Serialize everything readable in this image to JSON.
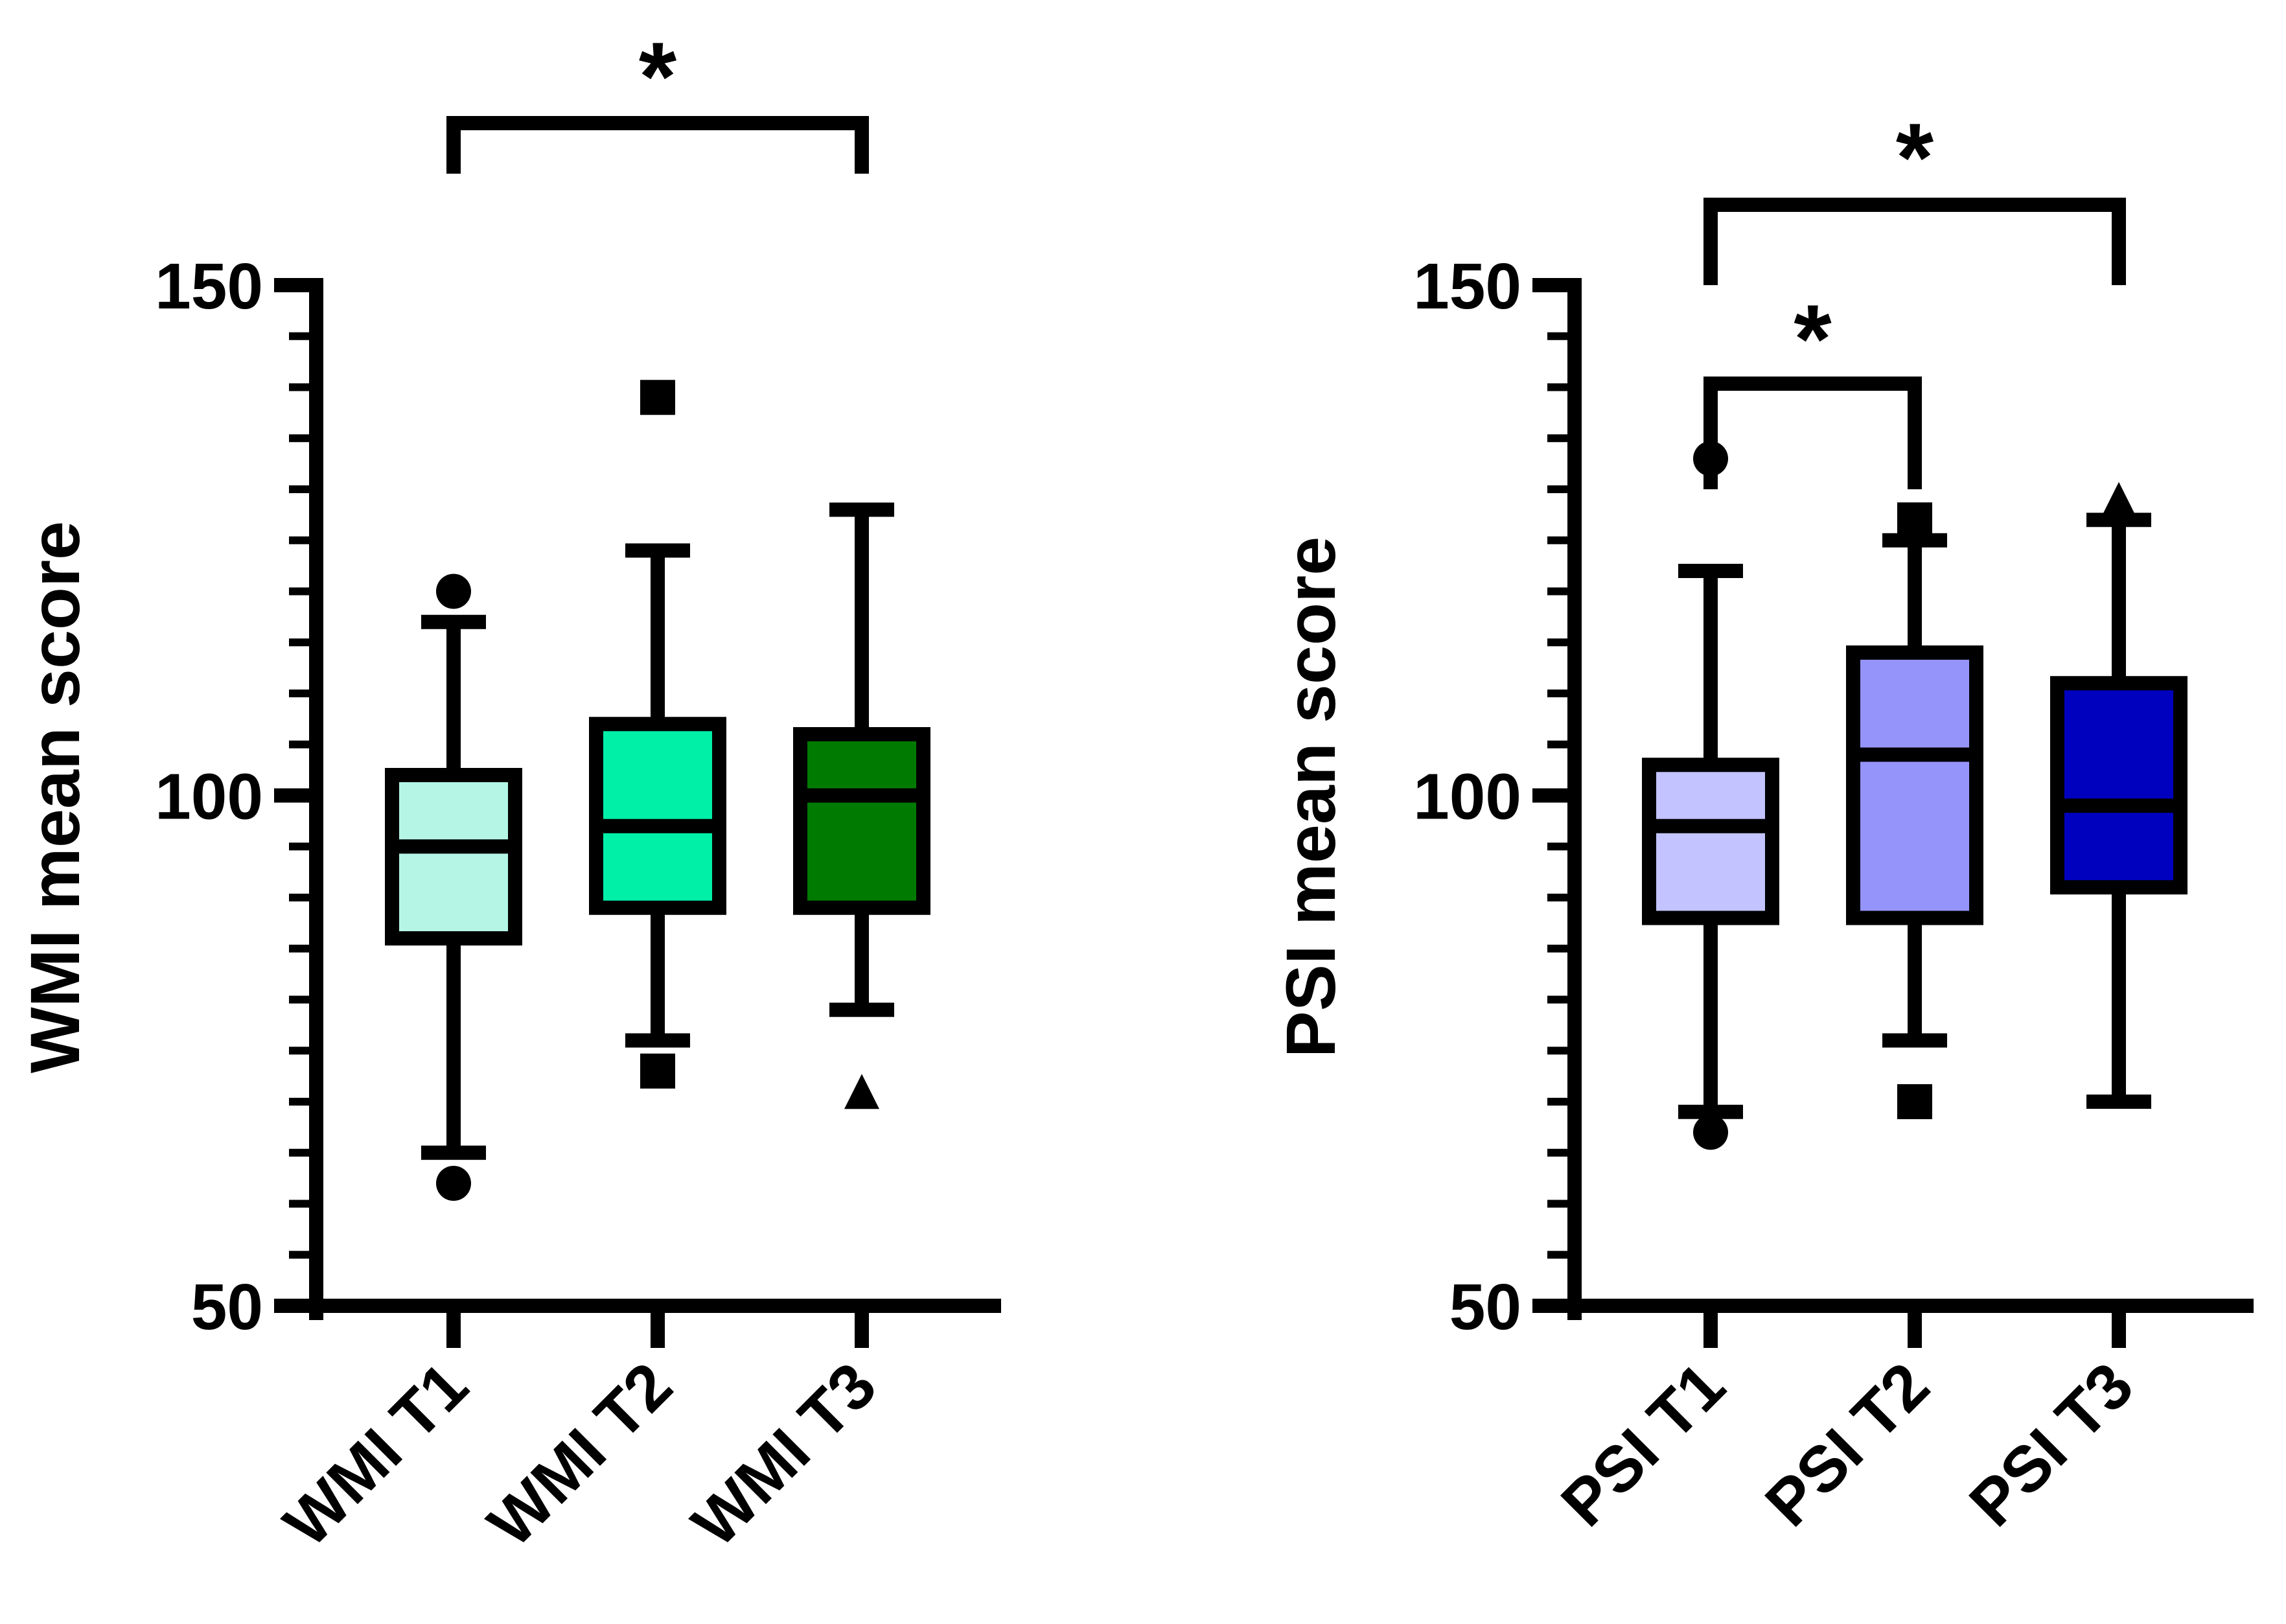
{
  "chart_data": [
    {
      "type": "box",
      "title": "",
      "xlabel": "",
      "ylabel": "WMI mean score",
      "ylim": [
        50,
        150
      ],
      "yticks": [
        50,
        100,
        150
      ],
      "minor_tick_step": 5,
      "categories": [
        "WMI T1",
        "WMI T2",
        "WMI T3"
      ],
      "boxes": [
        {
          "label": "WMI T1",
          "color": "#B5F5E5",
          "whisker_low": 65,
          "q1": 86,
          "median": 95,
          "q3": 102,
          "whisker_high": 117,
          "outliers": [
            62,
            120
          ],
          "marker": "circle"
        },
        {
          "label": "WMI T2",
          "color": "#00F0A8",
          "whisker_low": 76,
          "q1": 89,
          "median": 97,
          "q3": 107,
          "whisker_high": 124,
          "outliers": [
            73,
            139
          ],
          "marker": "square"
        },
        {
          "label": "WMI T3",
          "color": "#007A00",
          "whisker_low": 79,
          "q1": 89,
          "median": 100,
          "q3": 106,
          "whisker_high": 128,
          "outliers": [
            71
          ],
          "marker": "triangle"
        }
      ],
      "significance": [
        {
          "from": "WMI T1",
          "to": "WMI T3",
          "label": "*"
        }
      ]
    },
    {
      "type": "box",
      "title": "",
      "xlabel": "",
      "ylabel": "PSI mean score",
      "ylim": [
        50,
        150
      ],
      "yticks": [
        50,
        100,
        150
      ],
      "minor_tick_step": 5,
      "categories": [
        "PSI T1",
        "PSI T2",
        "PSI T3"
      ],
      "boxes": [
        {
          "label": "PSI T1",
          "color": "#C3C3FF",
          "whisker_low": 69,
          "q1": 88,
          "median": 97,
          "q3": 103,
          "whisker_high": 122,
          "outliers": [
            67,
            133
          ],
          "marker": "circle"
        },
        {
          "label": "PSI T2",
          "color": "#9494FB",
          "whisker_low": 76,
          "q1": 88,
          "median": 104,
          "q3": 114,
          "whisker_high": 125,
          "outliers": [
            70,
            127
          ],
          "marker": "square"
        },
        {
          "label": "PSI T3",
          "color": "#0000BF",
          "whisker_low": 70,
          "q1": 91,
          "median": 99,
          "q3": 111,
          "whisker_high": 127,
          "outliers": [
            129
          ],
          "marker": "triangle"
        }
      ],
      "significance": [
        {
          "from": "PSI T1",
          "to": "PSI T3",
          "label": "*"
        },
        {
          "from": "PSI T1",
          "to": "PSI T2",
          "label": "*"
        }
      ]
    }
  ]
}
